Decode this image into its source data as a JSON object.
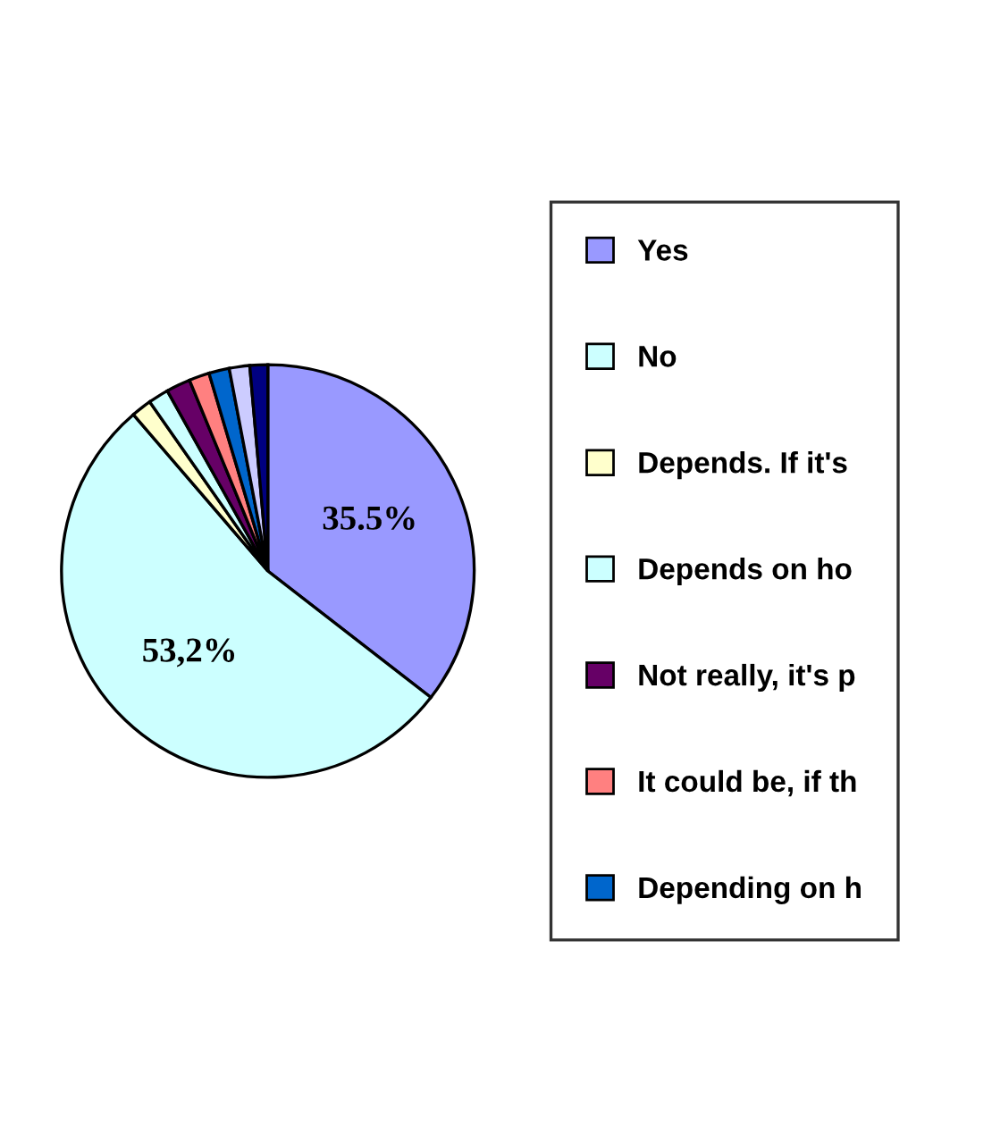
{
  "chart_data": {
    "type": "pie",
    "categories": [
      "Yes",
      "No",
      "Depends. If it's",
      "Depends on ho",
      "Not really, it's p",
      "It could be, if th",
      "Depending on h",
      null,
      null
    ],
    "values": [
      35.5,
      53.2,
      1.6,
      1.6,
      1.9,
      1.6,
      1.6,
      1.6,
      1.4
    ],
    "colors": [
      "#9999ff",
      "#ccffff",
      "#ffffcc",
      "#ccffff",
      "#660066",
      "#ff8080",
      "#0066cc",
      "#ccccff",
      "#000080"
    ],
    "value_labels": [
      "35.5%",
      "53,2%",
      null,
      null,
      null,
      null,
      null,
      null,
      null
    ],
    "legend": "right"
  }
}
